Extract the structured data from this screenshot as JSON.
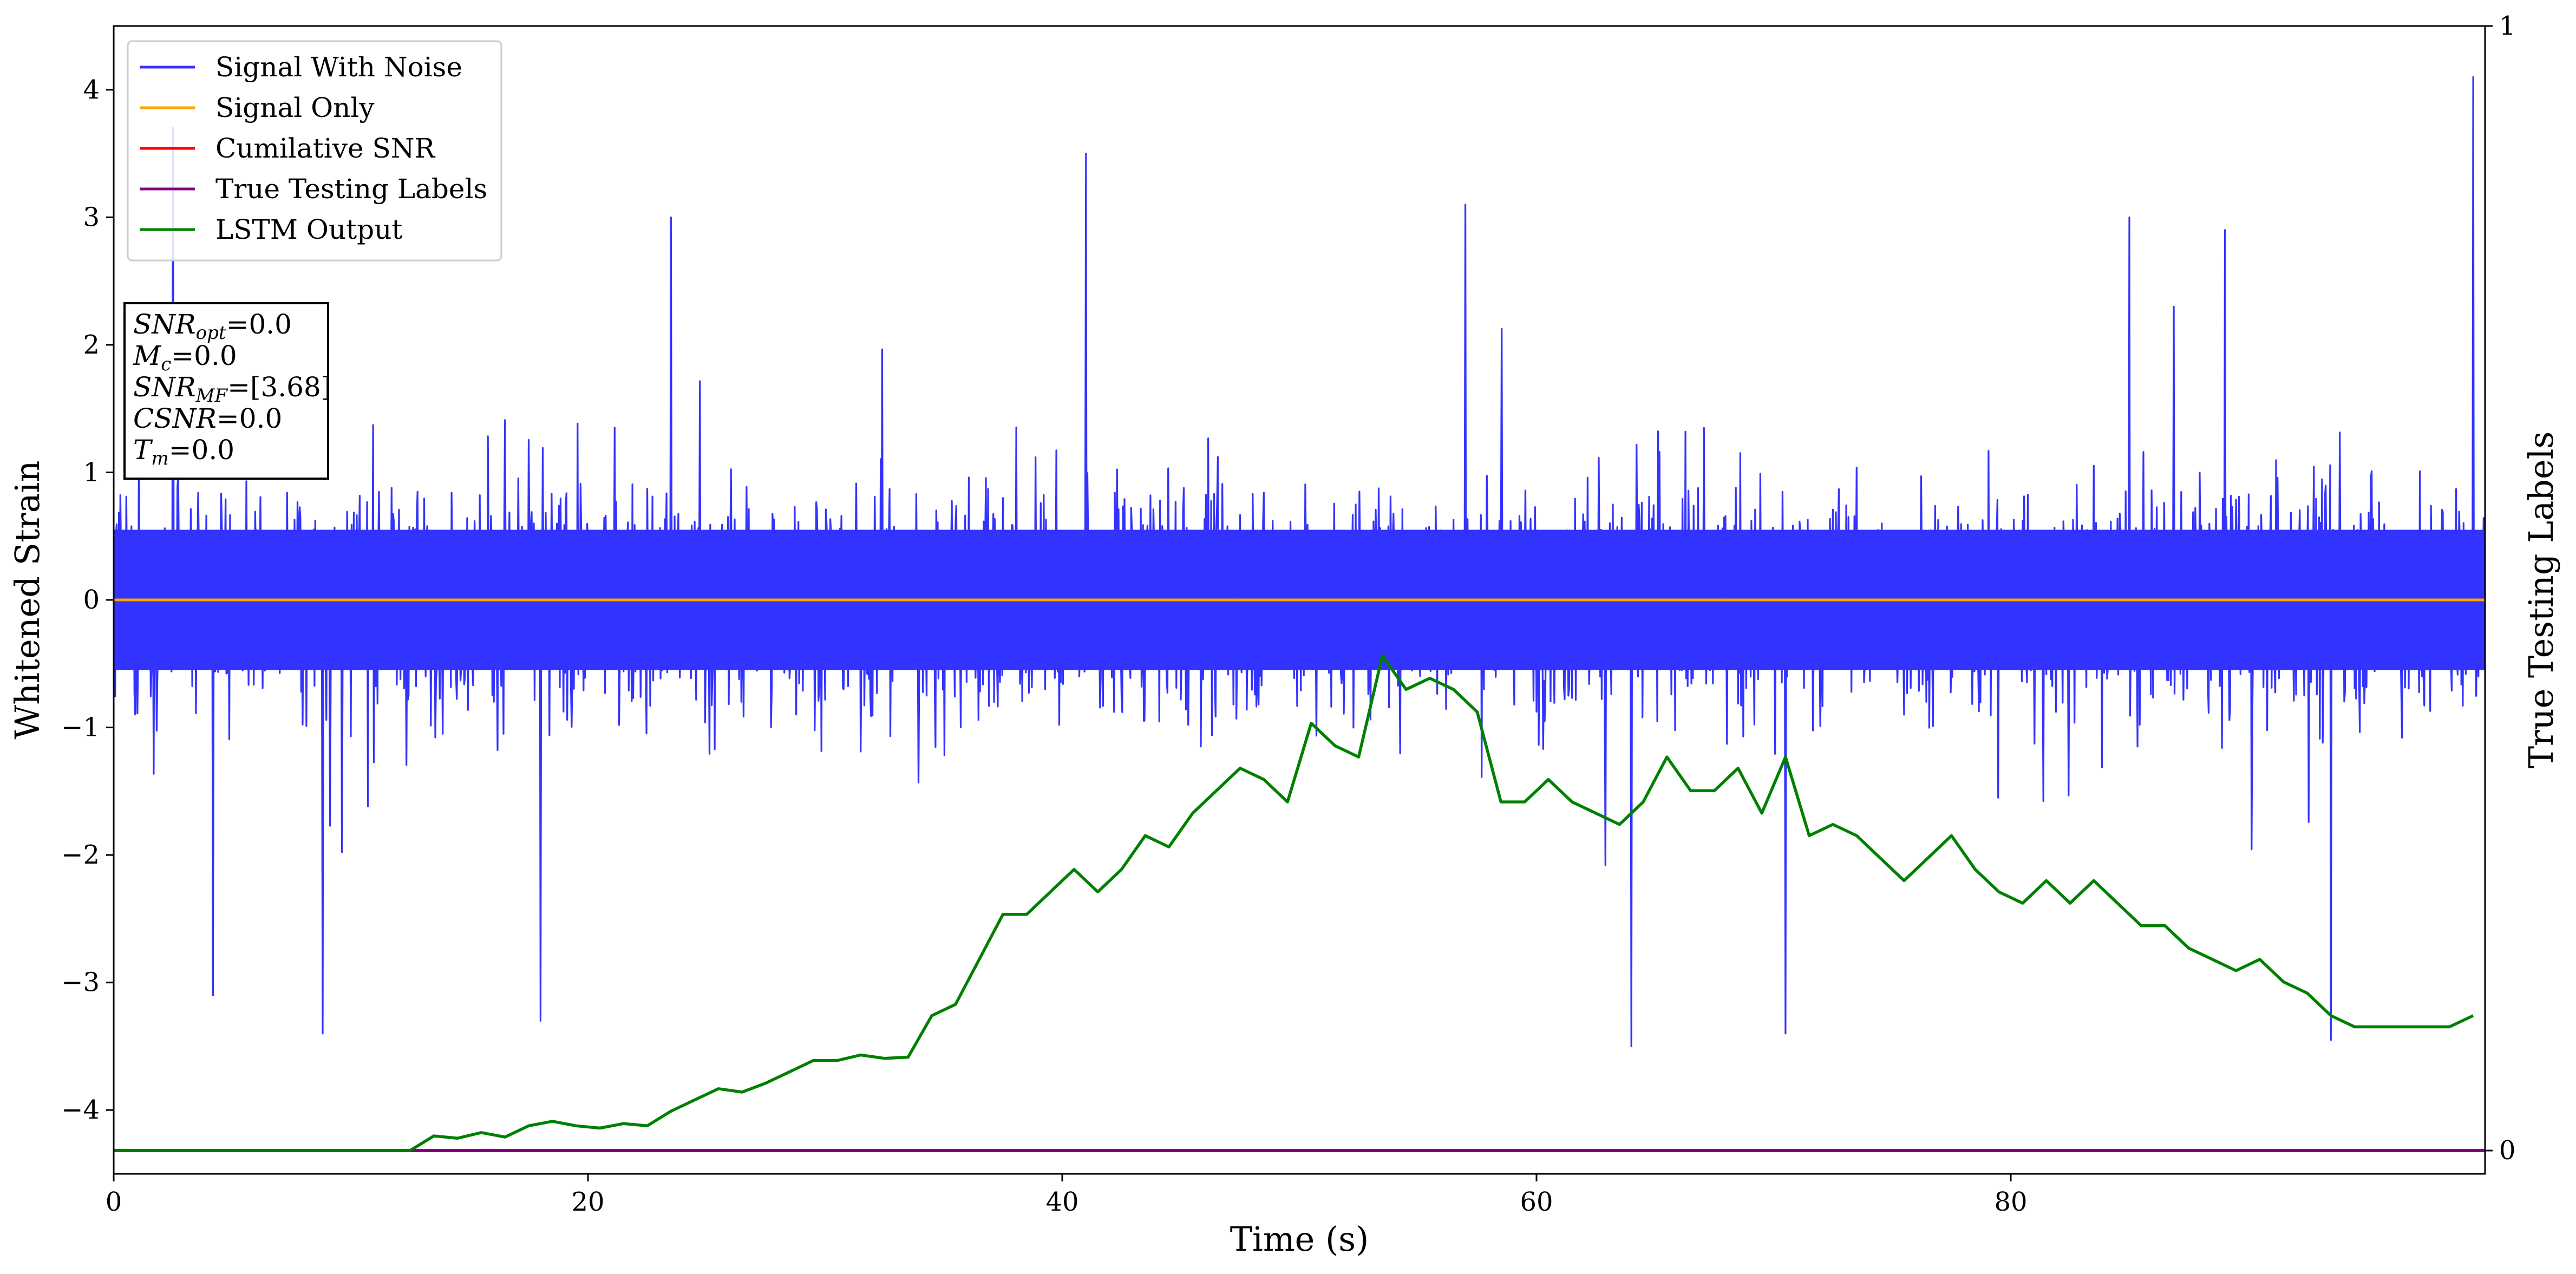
{
  "chart_data": {
    "type": "line",
    "xlabel": "Time (s)",
    "ylabel": "Whitened Strain",
    "y2label": "True Testing Labels",
    "xlim": [
      0,
      100
    ],
    "ylim": [
      -4.5,
      4.5
    ],
    "y2lim": [
      0,
      1
    ],
    "xticks": [
      "0",
      "20",
      "40",
      "60",
      "80"
    ],
    "yticks": [
      "4",
      "3",
      "2",
      "1",
      "0",
      "−1",
      "−2",
      "−3",
      "−4"
    ],
    "y2ticks": [
      "1",
      "0"
    ],
    "grid": false,
    "legend_position": "top-left",
    "legend": [
      "Signal With Noise",
      "Signal Only",
      "Cumilative SNR",
      "True Testing Labels",
      "LSTM Output"
    ],
    "colors": {
      "signal_with_noise": "#3333ff",
      "signal_only": "#ffa500",
      "cumulative_snr": "#ff0000",
      "true_testing_labels": "#800080",
      "lstm_output": "#008000"
    },
    "series": [
      {
        "name": "Signal With Noise",
        "axis": "left",
        "note_visual": "dense noise",
        "x": [
          0,
          100
        ],
        "values": [
          0,
          0
        ],
        "envelope": {
          "min": -3.4,
          "max": 4.1,
          "typical_low": -1.4,
          "typical_high": 1.4
        },
        "peaks": [
          [
            2.5,
            3.7
          ],
          [
            23.5,
            3.0
          ],
          [
            41,
            3.5
          ],
          [
            57,
            3.1
          ],
          [
            85,
            3.0
          ],
          [
            99.5,
            4.1
          ]
        ],
        "troughs": [
          [
            4.2,
            -3.1
          ],
          [
            8.8,
            -3.4
          ],
          [
            18,
            -3.3
          ],
          [
            64,
            -3.5
          ],
          [
            70.5,
            -3.4
          ],
          [
            93.5,
            -3.45
          ]
        ]
      },
      {
        "name": "Signal Only",
        "axis": "left",
        "x": [
          0,
          100
        ],
        "values": [
          0,
          0
        ]
      },
      {
        "name": "Cumilative SNR",
        "axis": "left",
        "x": [],
        "values": []
      },
      {
        "name": "True Testing Labels",
        "axis": "right",
        "x": [
          0,
          100
        ],
        "values": [
          0,
          0
        ]
      },
      {
        "name": "LSTM Output",
        "axis": "right",
        "x": [
          0,
          12.5,
          13.5,
          14.5,
          15.5,
          16.5,
          17.5,
          18.5,
          19.5,
          20.5,
          21.5,
          22.5,
          23.5,
          24.5,
          25.5,
          26.5,
          27.5,
          28.5,
          29.5,
          30.5,
          31.5,
          32.5,
          33.5,
          34.5,
          35.5,
          36.5,
          37.5,
          38.5,
          39.5,
          40.5,
          41.5,
          42.5,
          43.5,
          44.5,
          45.5,
          46.5,
          47.5,
          48.5,
          49.5,
          50.5,
          51.5,
          52.5,
          53.5,
          54.5,
          55.5,
          56.5,
          57.5,
          58.5,
          59.5,
          60.5,
          61.5,
          62.5,
          63.5,
          64.5,
          65.5,
          66.5,
          67.5,
          68.5,
          69.5,
          70.5,
          71.5,
          72.5,
          73.5,
          74.5,
          75.5,
          76.5,
          77.5,
          78.5,
          79.5,
          80.5,
          81.5,
          82.5,
          83.5,
          84.5,
          85.5,
          86.5,
          87.5,
          88.5,
          89.5,
          90.5,
          91.5,
          92.5,
          93.5,
          94.5,
          95.5,
          96.5,
          97.5,
          98.5,
          99.5
        ],
        "values": [
          0.0,
          0.0,
          0.013,
          0.011,
          0.016,
          0.012,
          0.022,
          0.026,
          0.022,
          0.02,
          0.024,
          0.022,
          0.035,
          0.045,
          0.055,
          0.052,
          0.06,
          0.07,
          0.08,
          0.08,
          0.085,
          0.082,
          0.083,
          0.12,
          0.13,
          0.17,
          0.21,
          0.21,
          0.23,
          0.25,
          0.23,
          0.25,
          0.28,
          0.27,
          0.3,
          0.32,
          0.34,
          0.33,
          0.31,
          0.38,
          0.36,
          0.35,
          0.44,
          0.41,
          0.42,
          0.41,
          0.39,
          0.31,
          0.31,
          0.33,
          0.31,
          0.3,
          0.29,
          0.31,
          0.35,
          0.32,
          0.32,
          0.34,
          0.3,
          0.35,
          0.28,
          0.29,
          0.28,
          0.26,
          0.24,
          0.26,
          0.28,
          0.25,
          0.23,
          0.22,
          0.24,
          0.22,
          0.24,
          0.22,
          0.2,
          0.2,
          0.18,
          0.17,
          0.16,
          0.17,
          0.15,
          0.14,
          0.12,
          0.11,
          0.11,
          0.11,
          0.11,
          0.11,
          0.12
        ]
      }
    ],
    "annotation": {
      "lines": [
        {
          "label": "SNR",
          "sub": "opt",
          "value": "=0.0"
        },
        {
          "label": "M",
          "sub": "c",
          "value": "=0.0"
        },
        {
          "label": "SNR",
          "sub": "MF",
          "value": "=[3.68]"
        },
        {
          "label": "CSNR",
          "sub": "",
          "value": "=0.0"
        },
        {
          "label": "T",
          "sub": "m",
          "value": "=0.0"
        }
      ]
    }
  }
}
